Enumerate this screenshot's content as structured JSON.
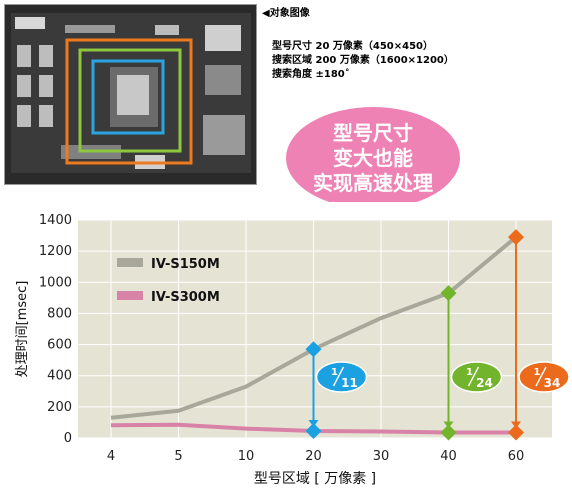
{
  "header": {
    "title": "◀对象图像",
    "lines": [
      "型号尺寸 20 万像素（450×450）",
      "搜索区域 200 万像素（1600×1200）",
      "搜索角度 ±180˚"
    ]
  },
  "callout": {
    "lines": [
      "型号尺寸",
      "变大也能",
      "实现高速处理"
    ],
    "color": "#ef82b4"
  },
  "chart_data": {
    "type": "line",
    "categories": [
      "4",
      "5",
      "10",
      "20",
      "30",
      "40",
      "60"
    ],
    "series": [
      {
        "name": "IV-S150M",
        "color": "#a8a89a",
        "values": [
          130,
          175,
          330,
          570,
          770,
          930,
          1290
        ]
      },
      {
        "name": "IV-S300M",
        "color": "#d982a8",
        "values": [
          82,
          85,
          60,
          45,
          42,
          35,
          35
        ]
      }
    ],
    "xlabel": "型号区域 [ 万像素 ]",
    "ylabel": "处理时间[msec]",
    "ylim": [
      0,
      1400
    ],
    "yticks": [
      0,
      200,
      400,
      600,
      800,
      1000,
      1200,
      1400
    ],
    "grid": true,
    "legend_position": "top-left",
    "background": "#e5e3d4",
    "annotations": [
      {
        "category": "20",
        "numerator": "1",
        "denominator": "11",
        "color": "#1ba1e2"
      },
      {
        "category": "40",
        "numerator": "1",
        "denominator": "24",
        "color": "#72b42c"
      },
      {
        "category": "60",
        "numerator": "1",
        "denominator": "34",
        "color": "#ec6a1c"
      }
    ]
  }
}
